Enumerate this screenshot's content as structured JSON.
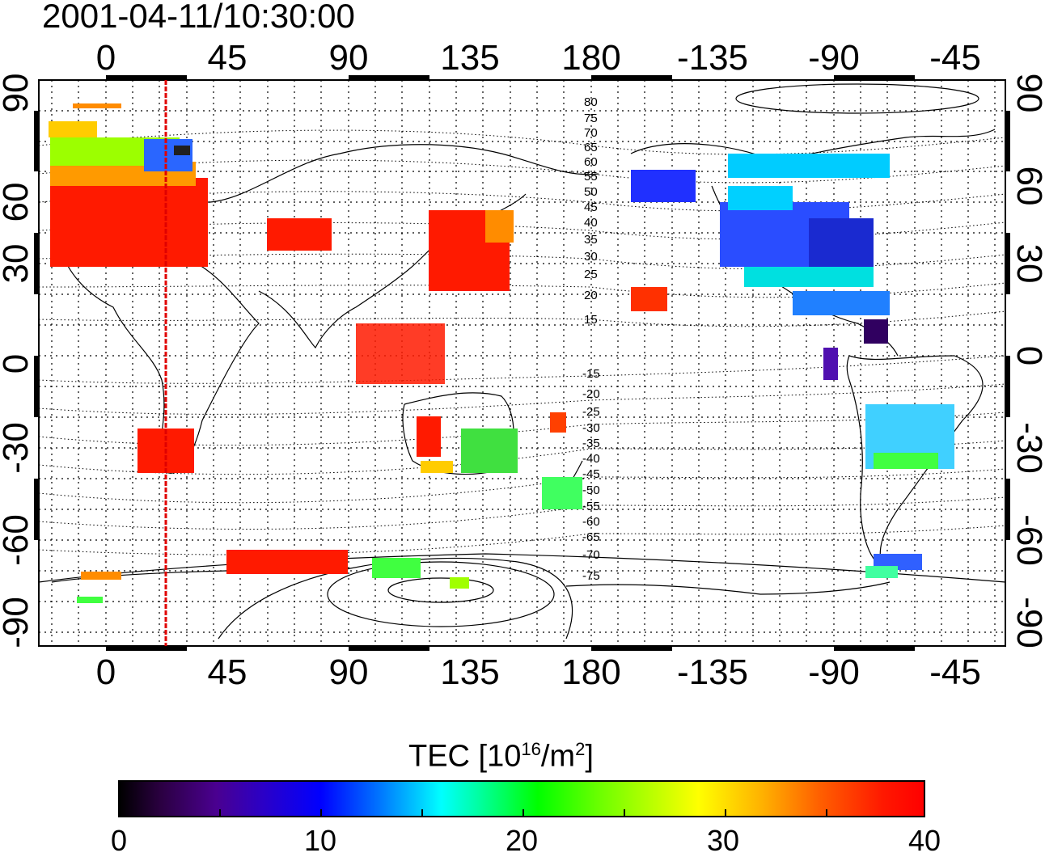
{
  "title": "2001-04-11/10:30:00",
  "map": {
    "top_lon_labels": [
      "0",
      "45",
      "90",
      "135",
      "180",
      "-135",
      "-90",
      "-45"
    ],
    "bottom_lon_labels": [
      "0",
      "45",
      "90",
      "135",
      "180",
      "-135",
      "-90",
      "-45"
    ],
    "left_lat_labels": [
      "90",
      "60",
      "30",
      "0",
      "-30",
      "-60",
      "-90"
    ],
    "right_lat_labels": [
      "90",
      "60",
      "30",
      "0",
      "-30",
      "-60",
      "-90"
    ],
    "contour_labels": [
      "80",
      "75",
      "70",
      "65",
      "60",
      "55",
      "50",
      "45",
      "40",
      "35",
      "30",
      "25",
      "20",
      "15",
      "-15",
      "-20",
      "-25",
      "-30",
      "-35",
      "-40",
      "-45",
      "-50",
      "-55",
      "-60",
      "-65",
      "-70",
      "-75"
    ],
    "colors": {
      "land_line": "#000000",
      "grid": "#000000",
      "marker_line": "#e00000"
    }
  },
  "colorbar": {
    "title_prefix": "TEC  [10",
    "title_exp": "16",
    "title_mid": "/m",
    "title_exp2": "2",
    "title_suffix": "]",
    "labels": [
      "0",
      "10",
      "20",
      "30",
      "40"
    ],
    "range": [
      0,
      40
    ]
  }
}
